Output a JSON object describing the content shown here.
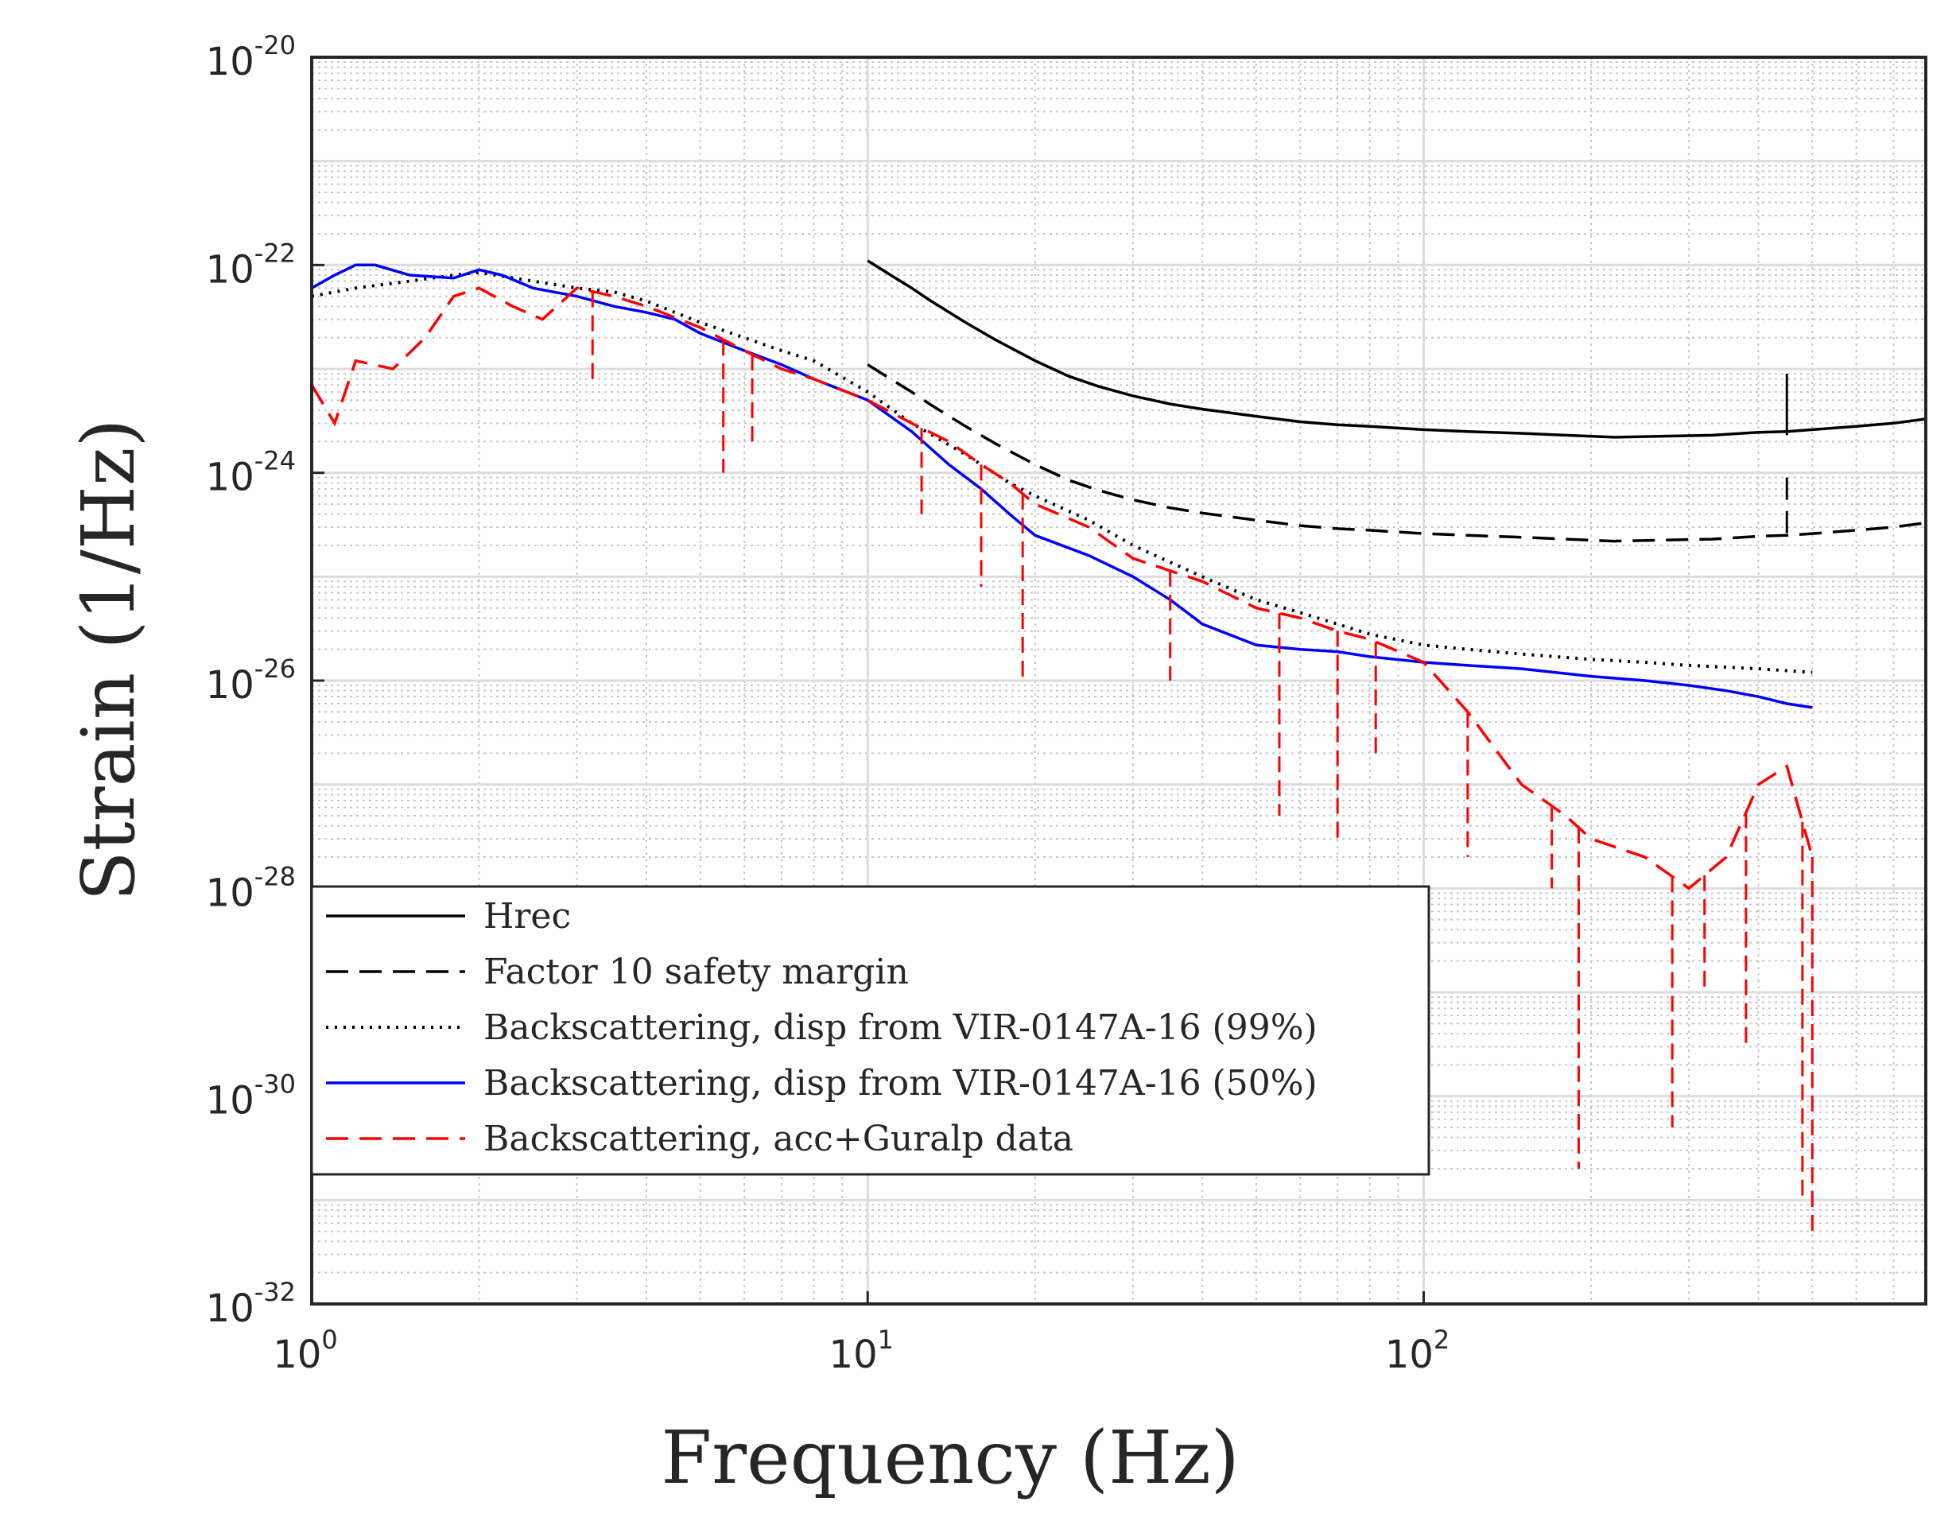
{
  "chart_data": {
    "type": "line",
    "x_scale": "log",
    "y_scale": "log",
    "xlim": [
      1,
      800
    ],
    "ylim": [
      1e-32,
      1e-20
    ],
    "grid": true,
    "minor_grid": true,
    "xlabel": "Frequency (Hz)",
    "ylabel_prefix": "Strain (1/",
    "ylabel_root": "Hz",
    "ylabel_suffix": ")",
    "x_ticks": [
      {
        "value": 1,
        "base": "10",
        "exp": "0"
      },
      {
        "value": 10,
        "base": "10",
        "exp": "1"
      },
      {
        "value": 100,
        "base": "10",
        "exp": "2"
      }
    ],
    "y_ticks": [
      {
        "value": 1e-32,
        "base": "10",
        "exp": "-32"
      },
      {
        "value": 1e-30,
        "base": "10",
        "exp": "-30"
      },
      {
        "value": 1e-28,
        "base": "10",
        "exp": "-28"
      },
      {
        "value": 1e-26,
        "base": "10",
        "exp": "-26"
      },
      {
        "value": 1e-24,
        "base": "10",
        "exp": "-24"
      },
      {
        "value": 1e-22,
        "base": "10",
        "exp": "-22"
      },
      {
        "value": 1e-20,
        "base": "10",
        "exp": "-20"
      }
    ],
    "legend_position": "lower-left",
    "series": [
      {
        "name": "Hrec",
        "color": "#000000",
        "style": "solid",
        "x": [
          10,
          11,
          12,
          13,
          15,
          17,
          20,
          23,
          26,
          30,
          35,
          40,
          50,
          60,
          70,
          80,
          100,
          120,
          150,
          180,
          220,
          270,
          330,
          400,
          450,
          500,
          600,
          700,
          800
        ],
        "y": [
          1.1e-22,
          8e-23,
          6e-23,
          4.5e-23,
          2.8e-23,
          1.9e-23,
          1.2e-23,
          8.5e-24,
          6.8e-24,
          5.5e-24,
          4.6e-24,
          4.1e-24,
          3.5e-24,
          3.1e-24,
          2.9e-24,
          2.8e-24,
          2.6e-24,
          2.5e-24,
          2.4e-24,
          2.3e-24,
          2.2e-24,
          2.25e-24,
          2.3e-24,
          2.45e-24,
          2.5e-24,
          2.6e-24,
          2.8e-24,
          3e-24,
          3.3e-24
        ],
        "spikes": [
          {
            "x": 450,
            "y_top": 9e-24,
            "y_bottom": 2.3e-24
          }
        ]
      },
      {
        "name": "Factor 10 safety margin",
        "color": "#000000",
        "style": "dashed",
        "x": [
          10,
          11,
          12,
          13,
          15,
          17,
          20,
          23,
          26,
          30,
          35,
          40,
          50,
          60,
          70,
          80,
          100,
          120,
          150,
          180,
          220,
          270,
          330,
          400,
          450,
          500,
          600,
          700,
          800
        ],
        "y": [
          1.1e-23,
          8e-24,
          6e-24,
          4.5e-24,
          2.8e-24,
          1.9e-24,
          1.2e-24,
          8.5e-25,
          6.8e-25,
          5.5e-25,
          4.6e-25,
          4.1e-25,
          3.5e-25,
          3.1e-25,
          2.9e-25,
          2.8e-25,
          2.6e-25,
          2.5e-25,
          2.4e-25,
          2.3e-25,
          2.2e-25,
          2.25e-25,
          2.3e-25,
          2.45e-25,
          2.5e-25,
          2.6e-25,
          2.8e-25,
          3e-25,
          3.3e-25
        ],
        "spikes": [
          {
            "x": 450,
            "y_top": 9e-25,
            "y_bottom": 2.3e-25
          }
        ]
      },
      {
        "name": "Backscattering, disp from VIR-0147A-16 (99%)",
        "color": "#000000",
        "style": "dotted",
        "x": [
          1,
          1.2,
          1.5,
          1.8,
          2,
          2.5,
          3,
          3.5,
          4,
          5,
          6,
          7,
          8,
          10,
          12,
          15,
          18,
          20,
          25,
          30,
          40,
          50,
          60,
          70,
          80,
          100,
          120,
          150,
          200,
          250,
          300,
          400,
          500
        ],
        "y": [
          5e-23,
          6e-23,
          7e-23,
          8e-23,
          8.5e-23,
          7e-23,
          6e-23,
          5.5e-23,
          4.5e-23,
          2.8e-23,
          2e-23,
          1.5e-23,
          1.2e-23,
          6e-24,
          3e-24,
          1.5e-24,
          8e-25,
          6e-25,
          3.5e-25,
          2e-25,
          1e-25,
          6e-26,
          4.5e-26,
          3.5e-26,
          2.8e-26,
          2.2e-26,
          2e-26,
          1.8e-26,
          1.6e-26,
          1.5e-26,
          1.4e-26,
          1.3e-26,
          1.2e-26
        ]
      },
      {
        "name": "Backscattering, disp from VIR-0147A-16 (50%)",
        "color": "#0000ff",
        "style": "solid",
        "x": [
          1,
          1.1,
          1.2,
          1.3,
          1.5,
          1.8,
          2,
          2.2,
          2.5,
          3,
          3.5,
          4,
          4.5,
          5,
          6,
          7,
          8,
          10,
          12,
          14,
          16,
          18,
          20,
          25,
          30,
          35,
          40,
          50,
          60,
          70,
          80,
          100,
          120,
          150,
          200,
          250,
          300,
          350,
          400,
          450,
          500
        ],
        "y": [
          6e-23,
          8e-23,
          1e-22,
          1e-22,
          8e-23,
          7.5e-23,
          9e-23,
          8e-23,
          6e-23,
          5e-23,
          4e-23,
          3.5e-23,
          3e-23,
          2.2e-23,
          1.5e-23,
          1.1e-23,
          8e-24,
          5e-24,
          2.5e-24,
          1.2e-24,
          7e-25,
          4e-25,
          2.5e-25,
          1.6e-25,
          1e-25,
          6e-26,
          3.5e-26,
          2.2e-26,
          2e-26,
          1.9e-26,
          1.7e-26,
          1.5e-26,
          1.4e-26,
          1.3e-26,
          1.1e-26,
          1e-26,
          9e-27,
          8e-27,
          7e-27,
          6e-27,
          5.5e-27
        ]
      },
      {
        "name": "Backscattering, acc+Guralp data",
        "color": "#ff0000",
        "style": "dashed",
        "x": [
          1,
          1.1,
          1.2,
          1.4,
          1.6,
          1.8,
          2,
          2.3,
          2.6,
          3,
          3.5,
          4,
          5,
          6,
          7,
          8,
          10,
          12,
          14,
          16,
          18,
          20,
          25,
          30,
          40,
          50,
          60,
          70,
          80,
          100,
          120,
          150,
          180,
          200,
          250,
          300,
          350,
          400,
          450,
          500
        ],
        "y": [
          7e-24,
          3e-24,
          1.2e-23,
          1e-23,
          2e-23,
          5e-23,
          6e-23,
          4e-23,
          3e-23,
          6e-23,
          5e-23,
          4e-23,
          2.5e-23,
          1.5e-23,
          1e-23,
          8e-24,
          5e-24,
          3e-24,
          2e-24,
          1.2e-24,
          8e-25,
          5e-25,
          3e-25,
          1.5e-25,
          9e-26,
          5e-26,
          4e-26,
          3e-26,
          2.5e-26,
          1.5e-26,
          5e-27,
          1e-27,
          5e-28,
          3e-28,
          2e-28,
          1e-28,
          2e-28,
          1e-27,
          1.5e-27,
          2e-28
        ],
        "dips": [
          {
            "x": 3.2,
            "y": 8e-24
          },
          {
            "x": 5.5,
            "y": 1e-24
          },
          {
            "x": 6.2,
            "y": 2e-24
          },
          {
            "x": 12.5,
            "y": 4e-25
          },
          {
            "x": 16,
            "y": 8e-26
          },
          {
            "x": 19,
            "y": 1e-26
          },
          {
            "x": 35,
            "y": 1e-26
          },
          {
            "x": 55,
            "y": 5e-28
          },
          {
            "x": 70,
            "y": 3e-28
          },
          {
            "x": 82,
            "y": 2e-27
          },
          {
            "x": 120,
            "y": 2e-28
          },
          {
            "x": 170,
            "y": 1e-28
          },
          {
            "x": 190,
            "y": 2e-31
          },
          {
            "x": 280,
            "y": 5e-31
          },
          {
            "x": 320,
            "y": 1e-29
          },
          {
            "x": 380,
            "y": 3e-30
          },
          {
            "x": 480,
            "y": 1e-31
          },
          {
            "x": 500,
            "y": 5e-32
          }
        ]
      }
    ]
  }
}
